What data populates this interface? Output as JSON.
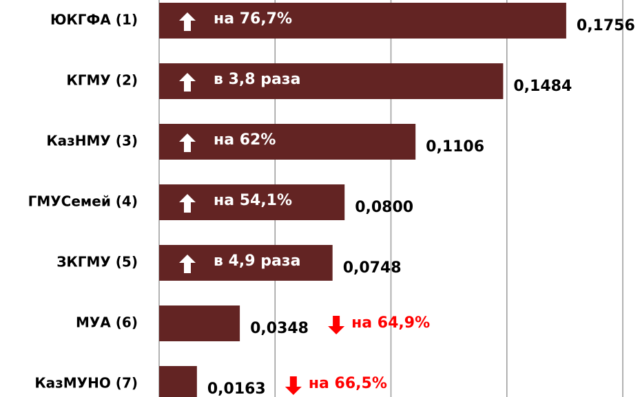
{
  "chart_data": {
    "type": "barh",
    "categories": [
      "ЮКГФА (1)",
      "КГМУ (2)",
      "КазНМУ (3)",
      "ГМУСемей (4)",
      "ЗКГМУ (5)",
      "МУА (6)",
      "КазМУНО (7)"
    ],
    "values": [
      0.1756,
      0.1484,
      0.1106,
      0.08,
      0.0748,
      0.0348,
      0.0163
    ],
    "value_labels": [
      "0,1756",
      "0,1484",
      "0,1106",
      "0,0800",
      "0,0748",
      "0,0348",
      "0,0163"
    ],
    "annotations": [
      "на 76,7%",
      "в 3,8 раза",
      "на 62%",
      "на 54,1%",
      "в 4,9 раза",
      "на 64,9%",
      "на 66,5%"
    ],
    "annotation_arrows": [
      "up",
      "up",
      "up",
      "up",
      "up",
      "down",
      "down"
    ],
    "annotation_colors": [
      "#ffffff",
      "#ffffff",
      "#ffffff",
      "#ffffff",
      "#ffffff",
      "#ff0000",
      "#ff0000"
    ],
    "color": "#632423",
    "xlim": [
      0,
      0.2
    ],
    "xticks": [
      0,
      0.05,
      0.1,
      0.15,
      0.2
    ],
    "grid": true
  }
}
